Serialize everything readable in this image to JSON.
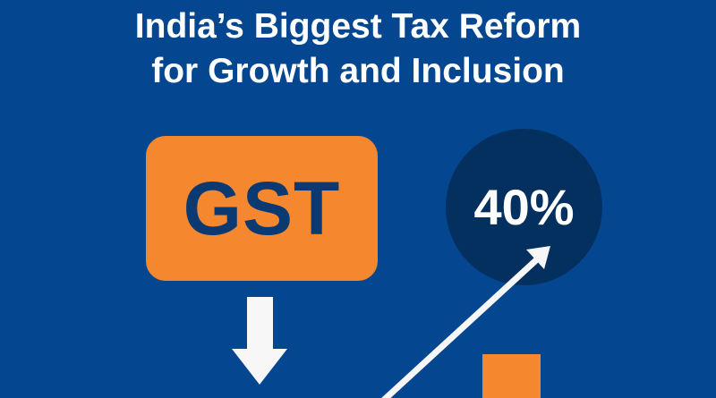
{
  "title": {
    "line1": "India’s Biggest Tax Reform",
    "line2": "for Growth and Inclusion"
  },
  "badge": {
    "label": "GST"
  },
  "stat": {
    "value": "40%"
  },
  "icons": [
    "arrow-down-icon",
    "arrow-up-right-icon",
    "bar-icon"
  ],
  "colors": {
    "background": "#044790",
    "accent": "#f5872f",
    "circle": "#04305f",
    "text_dark": "#0b3a73",
    "text_light": "#ffffff"
  }
}
